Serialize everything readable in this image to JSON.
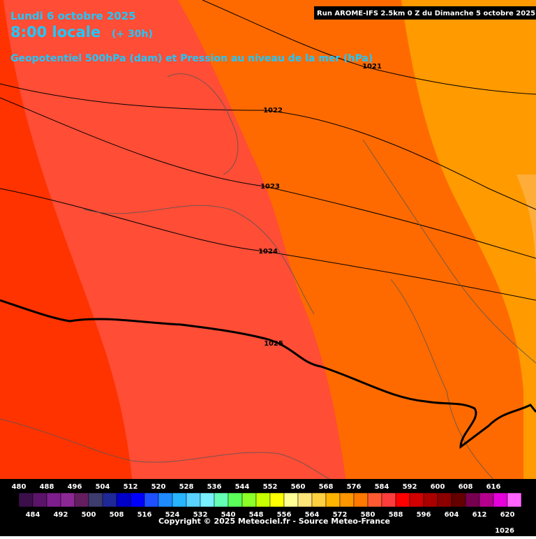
{
  "header": {
    "title": "Lundi 6 octobre 2025",
    "time": "8:00 locale",
    "lead": "(+ 30h)",
    "subtitle": "Geopotentiel 500hPa (dam) et Pression au niveau de la mer (hPa)",
    "run": "Run AROME-IFS 2.5km 0 Z du Dimanche 5 octobre 2025"
  },
  "isobar_labels": [
    "1021",
    "1022",
    "1023",
    "1024",
    "1025",
    "1026"
  ],
  "legend": {
    "colors": [
      "#3c0f4b",
      "#5a1469",
      "#7d1e8c",
      "#8c2896",
      "#641e5f",
      "#3c3c6e",
      "#1e2896",
      "#0000c8",
      "#0000ff",
      "#1e50ff",
      "#1e8cff",
      "#28b4ff",
      "#5ad2ff",
      "#78f0ff",
      "#64ffb4",
      "#5aff5a",
      "#8cff28",
      "#c8ff00",
      "#ffff00",
      "#ffff96",
      "#ffe678",
      "#ffd040",
      "#ffb400",
      "#ff9600",
      "#ff7800",
      "#ff5a32",
      "#ff3c3c",
      "#ff0000",
      "#d20000",
      "#aa0000",
      "#8c0000",
      "#640000",
      "#780050",
      "#b4008c",
      "#e600dc",
      "#ff64ff"
    ],
    "top_labels": [
      480,
      488,
      496,
      504,
      512,
      520,
      528,
      536,
      544,
      552,
      560,
      568,
      576,
      584,
      592,
      600,
      608,
      616
    ],
    "bottom_labels": [
      484,
      492,
      500,
      508,
      516,
      524,
      532,
      540,
      548,
      556,
      564,
      572,
      580,
      588,
      596,
      604,
      612,
      620
    ]
  },
  "copyright": "Copyright © 2025 Meteociel.fr - Source Meteo-France"
}
